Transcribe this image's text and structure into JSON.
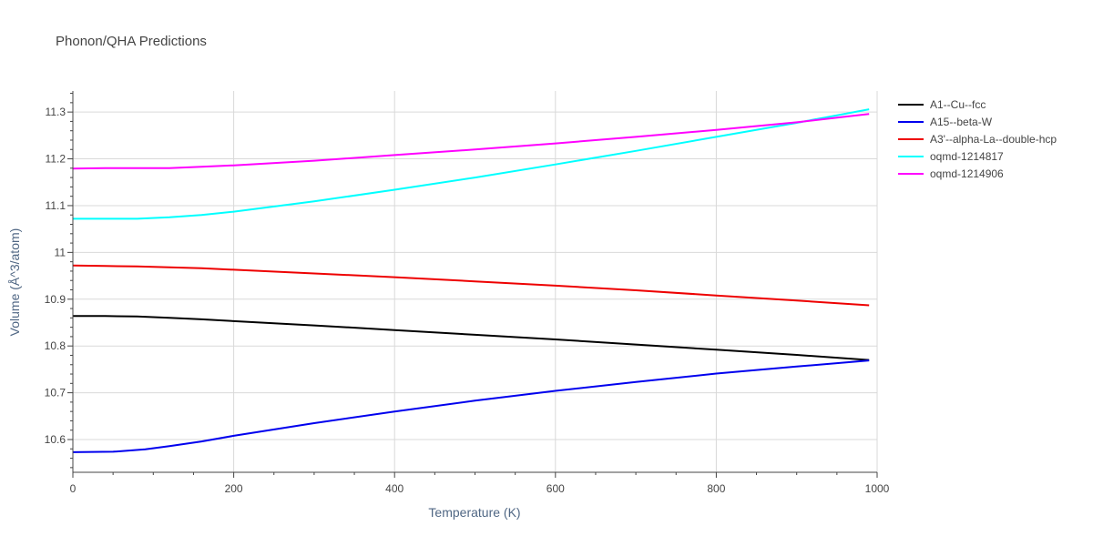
{
  "chart_data": {
    "type": "line",
    "title": "Phonon/QHA Predictions",
    "xlabel": "Temperature (K)",
    "ylabel": "Volume (Å^3/atom)",
    "xlim": [
      0,
      1000
    ],
    "ylim": [
      10.53,
      11.345
    ],
    "x_ticks": [
      0,
      200,
      400,
      600,
      800,
      1000
    ],
    "x_tick_labels": [
      "0",
      "200",
      "400",
      "600",
      "800",
      "1000"
    ],
    "y_ticks": [
      10.6,
      10.7,
      10.8,
      10.9,
      11.0,
      11.1,
      11.2,
      11.3
    ],
    "y_tick_labels": [
      "10.6",
      "10.7",
      "10.8",
      "10.9",
      "11",
      "11.1",
      "11.2",
      "11.3"
    ],
    "grid": true,
    "legend_position": "top-right-outside",
    "series": [
      {
        "name": "A1--Cu--fcc",
        "color": "#000000",
        "x": [
          0,
          40,
          80,
          120,
          160,
          200,
          300,
          400,
          500,
          600,
          700,
          800,
          900,
          990
        ],
        "y": [
          10.864,
          10.864,
          10.863,
          10.86,
          10.857,
          10.853,
          10.844,
          10.834,
          10.824,
          10.814,
          10.803,
          10.792,
          10.781,
          10.77
        ]
      },
      {
        "name": "A15--beta-W",
        "color": "#0000ee",
        "x": [
          0,
          50,
          90,
          120,
          160,
          200,
          300,
          400,
          500,
          600,
          700,
          800,
          900,
          990
        ],
        "y": [
          10.573,
          10.574,
          10.579,
          10.586,
          10.596,
          10.608,
          10.635,
          10.66,
          10.683,
          10.704,
          10.723,
          10.741,
          10.756,
          10.769
        ]
      },
      {
        "name": "A3'--alpha-La--double-hcp",
        "color": "#ee0000",
        "x": [
          0,
          40,
          80,
          120,
          160,
          200,
          300,
          400,
          500,
          600,
          700,
          800,
          900,
          990
        ],
        "y": [
          10.972,
          10.971,
          10.97,
          10.968,
          10.966,
          10.963,
          10.955,
          10.947,
          10.938,
          10.929,
          10.919,
          10.908,
          10.897,
          10.887
        ]
      },
      {
        "name": "oqmd-1214817",
        "color": "#00ffff",
        "x": [
          0,
          40,
          80,
          120,
          160,
          200,
          300,
          400,
          500,
          600,
          700,
          800,
          900,
          990
        ],
        "y": [
          11.072,
          11.072,
          11.072,
          11.075,
          11.08,
          11.087,
          11.109,
          11.134,
          11.16,
          11.188,
          11.217,
          11.247,
          11.277,
          11.306
        ]
      },
      {
        "name": "oqmd-1214906",
        "color": "#ff00ff",
        "x": [
          0,
          40,
          80,
          120,
          160,
          200,
          300,
          400,
          500,
          600,
          700,
          800,
          900,
          990
        ],
        "y": [
          11.179,
          11.18,
          11.18,
          11.18,
          11.183,
          11.186,
          11.196,
          11.208,
          11.22,
          11.233,
          11.247,
          11.262,
          11.278,
          11.296
        ]
      }
    ]
  }
}
